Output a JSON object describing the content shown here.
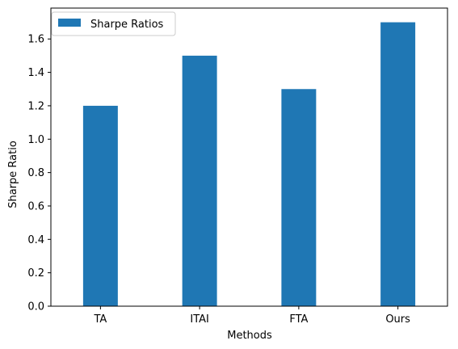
{
  "chart_data": {
    "type": "bar",
    "title": "",
    "xlabel": "Methods",
    "ylabel": "Sharpe Ratio",
    "categories": [
      "TA",
      "ITAI",
      "FTA",
      "Ours"
    ],
    "series": [
      {
        "name": "Sharpe Ratios",
        "values": [
          1.2,
          1.5,
          1.3,
          1.7
        ],
        "color": "#1f77b4"
      }
    ],
    "ylim": [
      0,
      1.785
    ],
    "yticks": [
      0.0,
      0.2,
      0.4,
      0.6,
      0.8,
      1.0,
      1.2,
      1.4,
      1.6
    ],
    "ytick_labels": [
      "0.0",
      "0.2",
      "0.4",
      "0.6",
      "0.8",
      "1.0",
      "1.2",
      "1.4",
      "1.6"
    ],
    "grid": false,
    "legend": {
      "position": "top-left"
    }
  }
}
